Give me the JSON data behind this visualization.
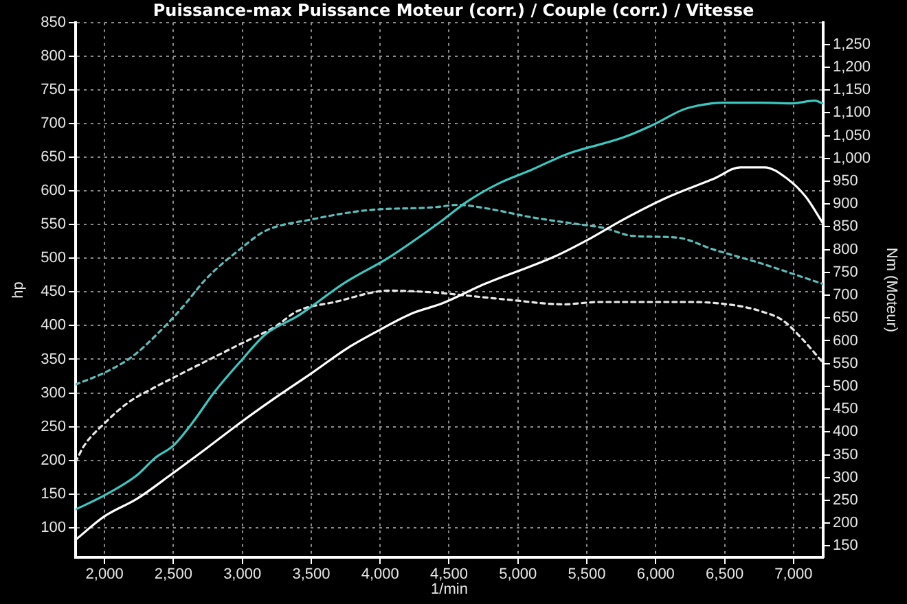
{
  "chart_data": {
    "type": "line",
    "title": "Puissance-max Puissance Moteur (corr.) / Couple (corr.) / Vitesse",
    "xlabel": "1/min",
    "ylabel": "hp",
    "y2label": "Nm (Moteur)",
    "xlim": [
      1790,
      7215
    ],
    "xticks": [
      {
        "value": 2000,
        "label": "2,000"
      },
      {
        "value": 2500,
        "label": "2,500"
      },
      {
        "value": 3000,
        "label": "3,000"
      },
      {
        "value": 3500,
        "label": "3,500"
      },
      {
        "value": 4000,
        "label": "4,000"
      },
      {
        "value": 4500,
        "label": "4,500"
      },
      {
        "value": 5000,
        "label": "5,000"
      },
      {
        "value": 5500,
        "label": "5,500"
      },
      {
        "value": 6000,
        "label": "6,000"
      },
      {
        "value": 6500,
        "label": "6,500"
      },
      {
        "value": 7000,
        "label": "7,000"
      }
    ],
    "ylim": [
      56,
      850
    ],
    "yticks": [
      100,
      150,
      200,
      250,
      300,
      350,
      400,
      450,
      500,
      550,
      600,
      650,
      700,
      750,
      800,
      850
    ],
    "y2lim": [
      125,
      1298
    ],
    "y2ticks": [
      150,
      200,
      250,
      300,
      350,
      400,
      450,
      500,
      550,
      600,
      650,
      700,
      750,
      800,
      850,
      900,
      950,
      {
        "value": 1000,
        "label": "1,000"
      },
      {
        "value": 1050,
        "label": "1,050"
      },
      {
        "value": 1100,
        "label": "1,100"
      },
      {
        "value": 1150,
        "label": "1,150"
      },
      {
        "value": 1200,
        "label": "1,200"
      },
      {
        "value": 1250,
        "label": "1,250"
      }
    ],
    "grid": true,
    "marker": "none",
    "series": [
      {
        "color": "#3cc8c0",
        "line_style": "solid",
        "x": [
          1790,
          2000,
          2236,
          2370,
          2500,
          2635,
          2800,
          3000,
          3167,
          3400,
          3500,
          3730,
          4070,
          4430,
          4630,
          4860,
          5095,
          5360,
          5760,
          5990,
          6190,
          6290,
          6490,
          6760,
          6990,
          7155,
          7210
        ],
        "values": [
          127,
          148,
          178,
          204,
          222,
          255,
          302,
          350,
          387,
          414,
          428,
          462,
          502,
          553,
          584,
          611,
          631,
          655,
          679,
          699,
          720,
          726,
          731,
          731,
          730,
          734,
          730
        ]
      },
      {
        "color": "#ffffff",
        "line_style": "solid",
        "x": [
          1790,
          2000,
          2236,
          2490,
          2735,
          3000,
          3233,
          3500,
          3766,
          4000,
          4230,
          4450,
          4760,
          5260,
          5530,
          5760,
          6090,
          6420,
          6615,
          6790,
          6955,
          7090,
          7210
        ],
        "values": [
          82,
          117,
          143,
          180,
          217,
          258,
          292,
          329,
          367,
          394,
          418,
          433,
          462,
          502,
          530,
          557,
          591,
          618,
          635,
          635,
          618,
          591,
          553
        ]
      },
      {
        "color": "#5cbcb8",
        "line_style": "dashed",
        "axis": "y2",
        "x": [
          1790,
          2000,
          2200,
          2400,
          2570,
          2735,
          3000,
          3167,
          3500,
          3900,
          4400,
          4560,
          4760,
          5095,
          5430,
          5630,
          5830,
          6160,
          6420,
          6760,
          7210
        ],
        "values": [
          504,
          530,
          565,
          620,
          675,
          735,
          805,
          841,
          866,
          886,
          893,
          898,
          891,
          871,
          856,
          847,
          830,
          826,
          800,
          770,
          725
        ]
      },
      {
        "color": "#e8e8e8",
        "line_style": "dashed",
        "axis": "y2",
        "x": [
          1790,
          1850,
          2000,
          2170,
          2340,
          2500,
          2735,
          3000,
          3233,
          3400,
          3670,
          4070,
          4430,
          4600,
          4930,
          5330,
          5590,
          5930,
          6260,
          6590,
          6760,
          6920,
          7060,
          7210
        ],
        "values": [
          334,
          369,
          419,
          464,
          494,
          519,
          555,
          595,
          630,
          665,
          685,
          710,
          705,
          700,
          690,
          680,
          685,
          685,
          685,
          677,
          665,
          645,
          605,
          553
        ]
      }
    ]
  }
}
